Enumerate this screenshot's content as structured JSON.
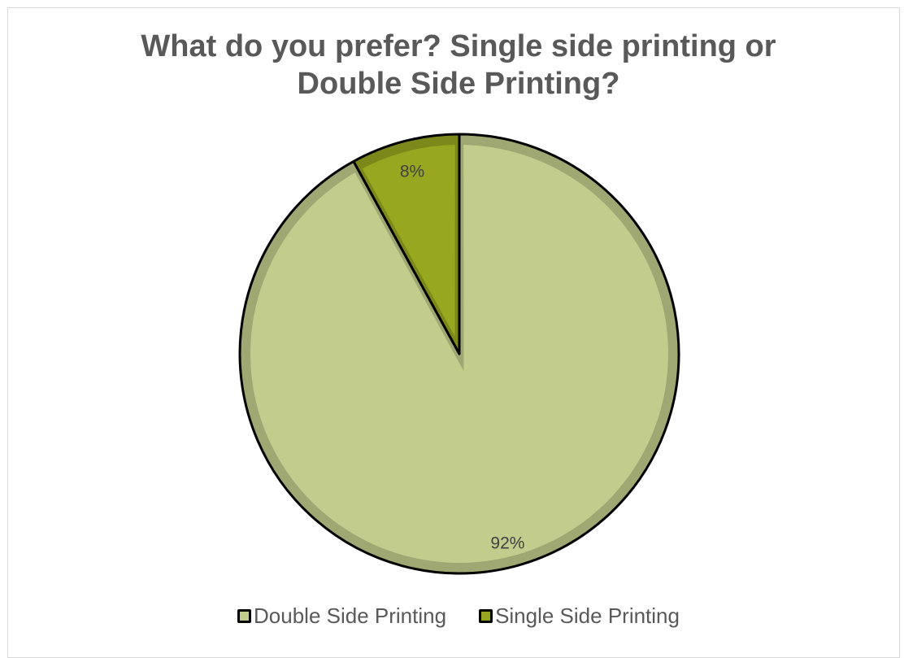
{
  "chart_data": {
    "type": "pie",
    "title_lines": [
      "What do you prefer? Single side printing or",
      "Double Side Printing?"
    ],
    "slices": [
      {
        "name": "Double Side Printing",
        "value": 92,
        "label": "92%",
        "color": "#c2cc8c"
      },
      {
        "name": "Single Side Printing",
        "value": 8,
        "label": "8%",
        "color": "#97a720"
      }
    ],
    "legend_position": "bottom"
  }
}
